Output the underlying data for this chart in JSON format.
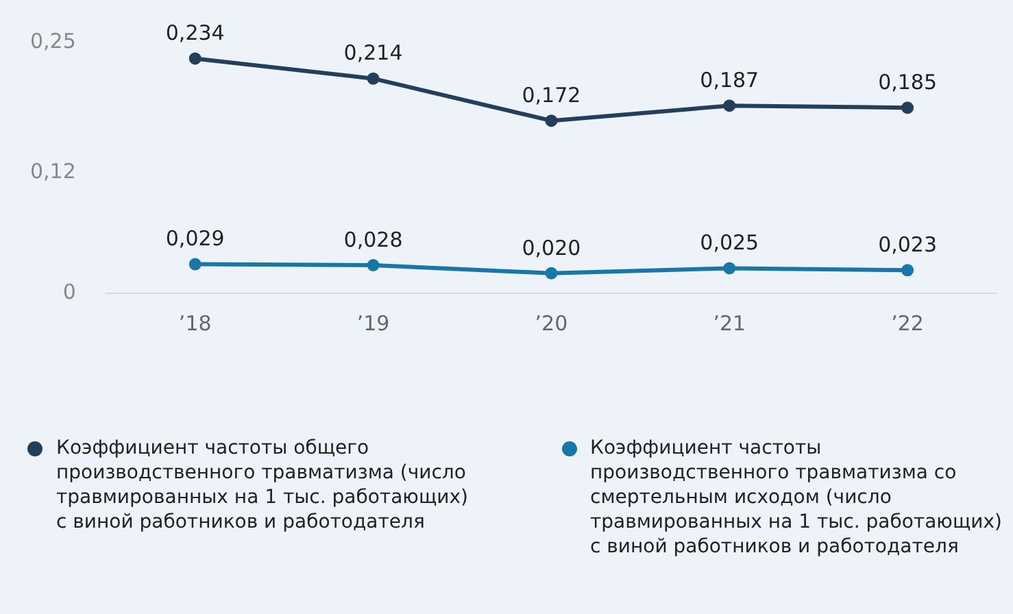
{
  "chart_data": {
    "type": "line",
    "categories": [
      "’18",
      "’19",
      "’20",
      "’21",
      "’22"
    ],
    "series": [
      {
        "name": "Коэффициент частоты общего производственного травматизма (число травмированных на 1 тыс. работающих) с виной работников и работодателя",
        "color": "#233f5c",
        "values": [
          0.234,
          0.214,
          0.172,
          0.187,
          0.185
        ],
        "value_labels": [
          "0,234",
          "0,214",
          "0,172",
          "0,187",
          "0,185"
        ]
      },
      {
        "name": "Коэффициент частоты производственного травматизма со смертельным исходом (число травмированных на 1 тыс. работающих) с виной работников и работодателя",
        "color": "#1677a8",
        "values": [
          0.029,
          0.028,
          0.02,
          0.025,
          0.023
        ],
        "value_labels": [
          "0,029",
          "0,028",
          "0,020",
          "0,025",
          "0,023"
        ]
      }
    ],
    "ylim": [
      0,
      0.25
    ],
    "yticks": [
      0,
      {
        "value": 0.12,
        "label": "0,12"
      },
      {
        "value": 0.25,
        "label": "0,25"
      }
    ],
    "grid": false,
    "legend": "bottom",
    "marker": "circle",
    "line_style": "solid"
  }
}
